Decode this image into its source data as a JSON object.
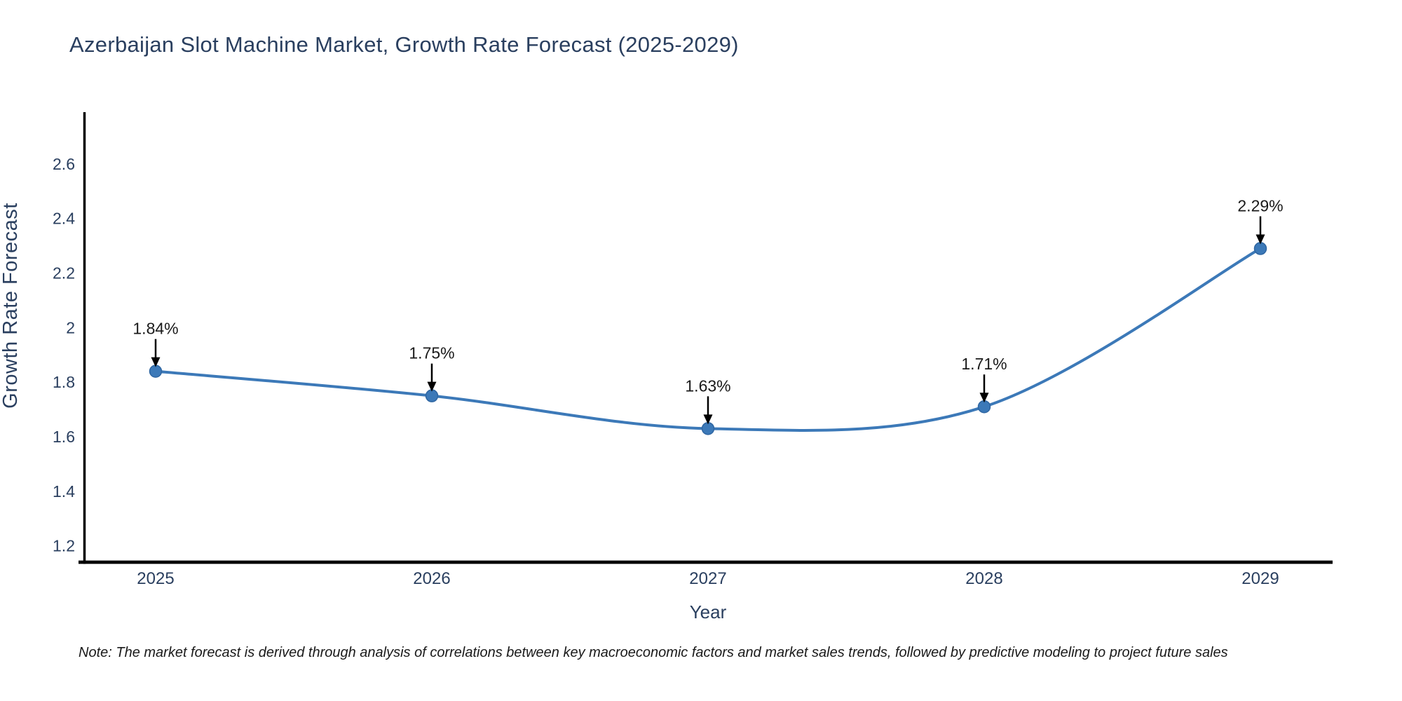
{
  "title": "Azerbaijan Slot Machine Market, Growth Rate Forecast (2025-2029)",
  "note": "Note: The market forecast is derived through analysis of correlations between key macroeconomic factors and market sales trends, followed by predictive modeling to project future sales",
  "chart_data": {
    "type": "line",
    "curve": "spline",
    "title": "Azerbaijan Slot Machine Market, Growth Rate Forecast (2025-2029)",
    "xlabel": "Year",
    "ylabel": "Growth Rate Forecast",
    "categories": [
      "2025",
      "2026",
      "2027",
      "2028",
      "2029"
    ],
    "values": [
      1.84,
      1.75,
      1.63,
      1.71,
      2.29
    ],
    "point_labels": [
      "1.84%",
      "1.75%",
      "1.63%",
      "1.71%",
      "2.29%"
    ],
    "y_ticks": [
      1.2,
      1.4,
      1.6,
      1.8,
      2,
      2.2,
      2.4,
      2.6
    ],
    "ylim": [
      1.14,
      2.79
    ],
    "grid": false,
    "legend": false,
    "annotation_style": "value label above point with downward black arrow",
    "colors": {
      "line": "#3c79b8",
      "marker_fill": "#3c79b8",
      "marker_edge": "#2f66a2",
      "axis": "#000000",
      "chart_text": "#2a3f5f",
      "annotation_text": "#1a1a1a",
      "arrow": "#000000",
      "background": "#ffffff"
    }
  }
}
